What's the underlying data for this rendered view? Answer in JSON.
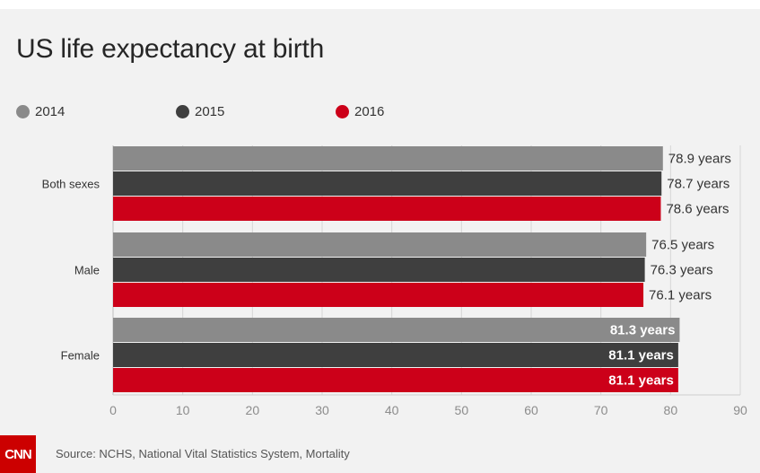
{
  "chart_data": {
    "type": "bar",
    "orientation": "horizontal",
    "title": "US life expectancy at birth",
    "categories": [
      "Both sexes",
      "Male",
      "Female"
    ],
    "series": [
      {
        "name": "2014",
        "values": [
          78.9,
          76.5,
          81.3
        ],
        "labels": [
          "78.9 years",
          "76.5 years",
          "81.3 years"
        ]
      },
      {
        "name": "2015",
        "values": [
          78.7,
          76.3,
          81.1
        ],
        "labels": [
          "78.7 years",
          "76.3 years",
          "81.1 years"
        ]
      },
      {
        "name": "2016",
        "values": [
          78.6,
          76.1,
          81.1
        ],
        "labels": [
          "78.6 years",
          "76.1 years",
          "81.1 years"
        ]
      }
    ],
    "xlim": [
      0,
      90
    ],
    "xticks": [
      "0",
      "10",
      "20",
      "30",
      "40",
      "50",
      "60",
      "70",
      "80",
      "90"
    ],
    "xlabel": "",
    "ylabel": "",
    "grid": true,
    "legend_position": "top"
  },
  "colors": {
    "2014": "#8a8a8a",
    "2015": "#3f3f3f",
    "2016": "#cc0019"
  },
  "footer": {
    "logo_text": "CNN",
    "source": "Source: NCHS, National Vital Statistics System, Mortality"
  }
}
